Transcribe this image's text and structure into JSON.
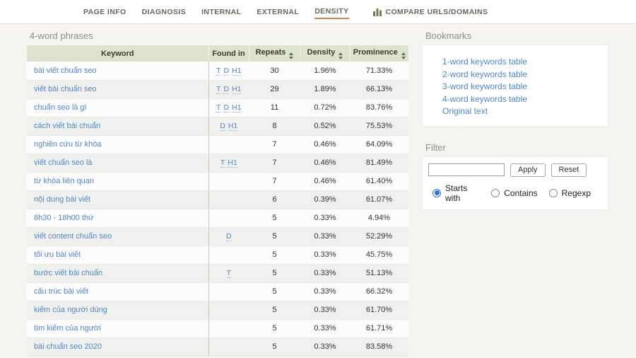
{
  "nav": {
    "items": [
      {
        "label": "PAGE INFO",
        "active": false
      },
      {
        "label": "DIAGNOSIS",
        "active": false
      },
      {
        "label": "INTERNAL",
        "active": false
      },
      {
        "label": "EXTERNAL",
        "active": false
      },
      {
        "label": "DENSITY",
        "active": true
      }
    ],
    "compare_label": "COMPARE URLS/DOMAINS",
    "compare_icon": "bar-chart-icon"
  },
  "main": {
    "title": "4-word phrases",
    "table": {
      "columns": [
        "Keyword",
        "Found in",
        "Repeats",
        "Density",
        "Prominence"
      ],
      "sortable_columns": [
        "Repeats",
        "Density",
        "Prominence"
      ],
      "rows": [
        {
          "keyword": "bài viết chuẩn seo",
          "found_in": [
            "T",
            "D",
            "H1"
          ],
          "repeats": "30",
          "density": "1.96%",
          "prominence": "71.33%"
        },
        {
          "keyword": "viết bài chuẩn seo",
          "found_in": [
            "T",
            "D",
            "H1"
          ],
          "repeats": "29",
          "density": "1.89%",
          "prominence": "66.13%"
        },
        {
          "keyword": "chuẩn seo là gì",
          "found_in": [
            "T",
            "D",
            "H1"
          ],
          "repeats": "11",
          "density": "0.72%",
          "prominence": "83.76%"
        },
        {
          "keyword": "cách viết bài chuẩn",
          "found_in": [
            "D",
            "H1"
          ],
          "repeats": "8",
          "density": "0.52%",
          "prominence": "75.53%"
        },
        {
          "keyword": "nghiên cứu từ khóa",
          "found_in": [],
          "repeats": "7",
          "density": "0.46%",
          "prominence": "64.09%"
        },
        {
          "keyword": "viết chuẩn seo là",
          "found_in": [
            "T",
            "H1"
          ],
          "repeats": "7",
          "density": "0.46%",
          "prominence": "81.49%"
        },
        {
          "keyword": "từ khóa liên quan",
          "found_in": [],
          "repeats": "7",
          "density": "0.46%",
          "prominence": "61.40%"
        },
        {
          "keyword": "nội dung bài viết",
          "found_in": [],
          "repeats": "6",
          "density": "0.39%",
          "prominence": "61.07%"
        },
        {
          "keyword": "8h30 - 18h00 thứ",
          "found_in": [],
          "repeats": "5",
          "density": "0.33%",
          "prominence": "4.94%"
        },
        {
          "keyword": "viết content chuẩn seo",
          "found_in": [
            "D"
          ],
          "repeats": "5",
          "density": "0.33%",
          "prominence": "52.29%"
        },
        {
          "keyword": "tối ưu bài viết",
          "found_in": [],
          "repeats": "5",
          "density": "0.33%",
          "prominence": "45.75%"
        },
        {
          "keyword": "bước viết bài chuẩn",
          "found_in": [
            "T"
          ],
          "repeats": "5",
          "density": "0.33%",
          "prominence": "51.13%"
        },
        {
          "keyword": "cấu trúc bài viết",
          "found_in": [],
          "repeats": "5",
          "density": "0.33%",
          "prominence": "66.32%"
        },
        {
          "keyword": "kiếm của người dùng",
          "found_in": [],
          "repeats": "5",
          "density": "0.33%",
          "prominence": "61.70%"
        },
        {
          "keyword": "tìm kiếm của người",
          "found_in": [],
          "repeats": "5",
          "density": "0.33%",
          "prominence": "61.71%"
        },
        {
          "keyword": "bài chuẩn seo 2020",
          "found_in": [],
          "repeats": "5",
          "density": "0.33%",
          "prominence": "83.58%"
        }
      ]
    }
  },
  "sidebar": {
    "bookmarks": {
      "title": "Bookmarks",
      "links": [
        "1-word keywords table",
        "2-word keywords table",
        "3-word keywords table",
        "4-word keywords table",
        "Original text"
      ]
    },
    "filter": {
      "title": "Filter",
      "input_value": "",
      "apply_label": "Apply",
      "reset_label": "Reset",
      "modes": [
        {
          "label": "Starts with",
          "selected": true
        },
        {
          "label": "Contains",
          "selected": false
        },
        {
          "label": "Regexp",
          "selected": false
        }
      ]
    }
  },
  "colors": {
    "accent_underline": "#d0834b",
    "link_blue": "#4d87c7",
    "table_header_bg": "#dde3cf",
    "sort_arrow": "#5e7146",
    "radio_selected": "#2e6fd6",
    "page_bg": "#f5f4f1"
  }
}
